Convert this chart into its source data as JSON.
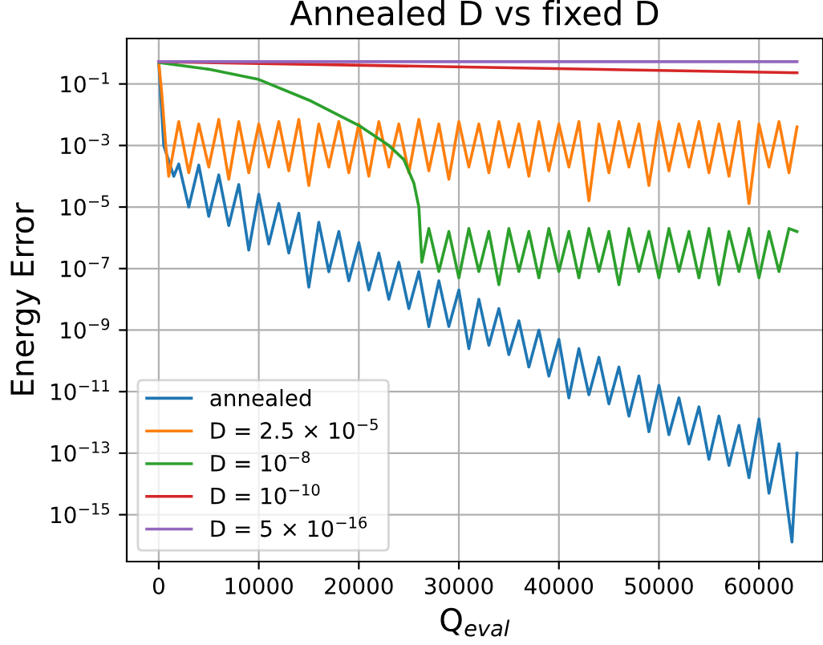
{
  "chart_data": {
    "type": "line",
    "title": "Annealed D vs fixed D",
    "xlabel": "Q$_{eval}$",
    "ylabel": "Energy Error",
    "log": "y",
    "grid": true,
    "legend": "bottom left",
    "xlim": [
      -3200,
      66400
    ],
    "xticks": [
      0,
      10000,
      20000,
      30000,
      40000,
      50000,
      60000
    ],
    "ylim": [
      3e-17,
      3
    ],
    "yticks": [
      {
        "value": 0.1,
        "label": "10$^{−1}$"
      },
      {
        "value": 0.001,
        "label": "10$^{−3}$"
      },
      {
        "value": 1e-05,
        "label": "10$^{−5}$"
      },
      {
        "value": 1e-07,
        "label": "10$^{−7}$"
      },
      {
        "value": 1e-09,
        "label": "10$^{−9}$"
      },
      {
        "value": 1e-11,
        "label": "10$^{−11}$"
      },
      {
        "value": 1e-13,
        "label": "10$^{−13}$"
      },
      {
        "value": 1e-15,
        "label": "10$^{−15}$"
      }
    ],
    "series": [
      {
        "name": "annealed",
        "color": "#1f77b4",
        "x": [
          0,
          500,
          1500,
          2000,
          3000,
          4000,
          5000,
          6000,
          7000,
          8000,
          9000,
          10000,
          11000,
          12000,
          13000,
          14000,
          15000,
          16000,
          17000,
          18000,
          19000,
          20000,
          21000,
          22000,
          23000,
          24000,
          25000,
          26000,
          27000,
          28000,
          29000,
          30000,
          31000,
          32000,
          33000,
          34000,
          35000,
          36000,
          37000,
          38000,
          39000,
          40000,
          41000,
          42000,
          43000,
          44000,
          45000,
          46000,
          47000,
          48000,
          49000,
          50000,
          51000,
          52000,
          53000,
          54000,
          55000,
          56000,
          57000,
          58000,
          59000,
          60000,
          61000,
          62000,
          63300,
          63800
        ],
        "values": [
          0.5,
          0.001,
          0.0001,
          0.00025,
          1e-05,
          0.00023,
          5e-06,
          0.00011,
          2.5e-06,
          5.4e-05,
          4e-07,
          2.6e-05,
          6.3e-07,
          1.3e-05,
          3.2e-07,
          6.3e-06,
          2.5e-08,
          3.2e-06,
          7.9e-08,
          1.6e-06,
          4e-08,
          7e-07,
          2e-08,
          3.2e-07,
          1e-08,
          1.6e-07,
          5e-09,
          7.9e-08,
          1.3e-09,
          4e-08,
          1.3e-09,
          2e-08,
          2.5e-10,
          1e-08,
          3.2e-10,
          5e-09,
          1.6e-10,
          2e-09,
          6.3e-11,
          1e-09,
          3.2e-11,
          5e-10,
          6.3e-12,
          2.5e-10,
          7.9e-12,
          1.3e-10,
          4e-12,
          6.3e-11,
          1.6e-12,
          3.2e-11,
          5e-13,
          1.6e-11,
          4e-13,
          6.3e-12,
          2e-13,
          3.2e-12,
          6.3e-14,
          1.6e-12,
          4e-14,
          8e-13,
          1.6e-14,
          1.3e-12,
          5e-15,
          2e-13,
          1.3e-16,
          1e-13
        ]
      },
      {
        "name": "D = 2.5 × 10$^{−5}$",
        "color": "#ff7f0e",
        "x": [
          0,
          300,
          700,
          1000,
          2000,
          3000,
          4000,
          5000,
          6000,
          7000,
          8000,
          9000,
          10000,
          11000,
          12000,
          13000,
          14000,
          15000,
          16000,
          17000,
          18000,
          19000,
          20000,
          21000,
          22000,
          23000,
          24000,
          25000,
          26000,
          27000,
          28000,
          29000,
          30000,
          31000,
          32000,
          33000,
          34000,
          35000,
          36000,
          37000,
          38000,
          39000,
          40000,
          41000,
          42000,
          43000,
          44000,
          45000,
          46000,
          47000,
          48000,
          49000,
          50000,
          51000,
          52000,
          53000,
          54000,
          55000,
          56000,
          57000,
          58000,
          59000,
          60000,
          61000,
          62000,
          63000,
          63800
        ],
        "values": [
          0.5,
          0.05,
          0.001,
          0.0001,
          0.006,
          0.00013,
          0.005,
          0.0002,
          0.007,
          8e-05,
          0.006,
          0.00013,
          0.005,
          0.0002,
          0.006,
          0.00015,
          0.007,
          5e-05,
          0.005,
          0.0002,
          0.006,
          0.00013,
          0.005,
          0.0001,
          0.006,
          0.0002,
          0.005,
          0.00013,
          0.007,
          0.00015,
          0.005,
          8e-05,
          0.006,
          0.0002,
          0.005,
          0.00013,
          0.006,
          0.0002,
          0.005,
          0.0001,
          0.006,
          0.00015,
          0.005,
          0.0002,
          0.006,
          1.6e-05,
          0.005,
          0.00013,
          0.006,
          0.0002,
          0.005,
          5e-05,
          0.006,
          0.00015,
          0.005,
          0.0002,
          0.006,
          0.00013,
          0.005,
          0.0001,
          0.006,
          1.3e-05,
          0.005,
          0.0002,
          0.006,
          0.00013,
          0.004
        ]
      },
      {
        "name": "D = 10$^{−8}$",
        "color": "#2ca02c",
        "x": [
          0,
          5000,
          10000,
          15000,
          20000,
          23000,
          24500,
          25500,
          26000,
          26300,
          27000,
          28000,
          29000,
          30000,
          31000,
          32000,
          33000,
          34000,
          35000,
          36000,
          37000,
          38000,
          39000,
          40000,
          41000,
          42000,
          43000,
          44000,
          45000,
          46000,
          47000,
          48000,
          49000,
          50000,
          51000,
          52000,
          53000,
          54000,
          55000,
          56000,
          57000,
          58000,
          59000,
          60000,
          61000,
          62000,
          63000,
          63800
        ],
        "values": [
          0.5,
          0.3,
          0.14,
          0.03,
          0.0045,
          0.001,
          0.00035,
          6e-05,
          1e-05,
          1.6e-07,
          2e-06,
          8e-08,
          1.6e-06,
          5e-08,
          2e-06,
          8e-08,
          1.6e-06,
          3e-08,
          2e-06,
          8e-08,
          1.6e-06,
          5e-08,
          2e-06,
          8e-08,
          1.6e-06,
          5e-08,
          2e-06,
          8e-08,
          1.6e-06,
          3e-08,
          2e-06,
          8e-08,
          1.6e-06,
          5e-08,
          2e-06,
          8e-08,
          1.6e-06,
          5e-08,
          2e-06,
          3e-08,
          1.6e-06,
          8e-08,
          2e-06,
          5e-08,
          1.6e-06,
          8e-08,
          2e-06,
          1.6e-06
        ]
      },
      {
        "name": "D = 10$^{−10}$",
        "color": "#d62728",
        "x": [
          0,
          63800
        ],
        "values": [
          0.53,
          0.23
        ]
      },
      {
        "name": "D = 5 × 10$^{−16}$",
        "color": "#9467bd",
        "x": [
          0,
          63800
        ],
        "values": [
          0.53,
          0.53
        ]
      }
    ]
  }
}
